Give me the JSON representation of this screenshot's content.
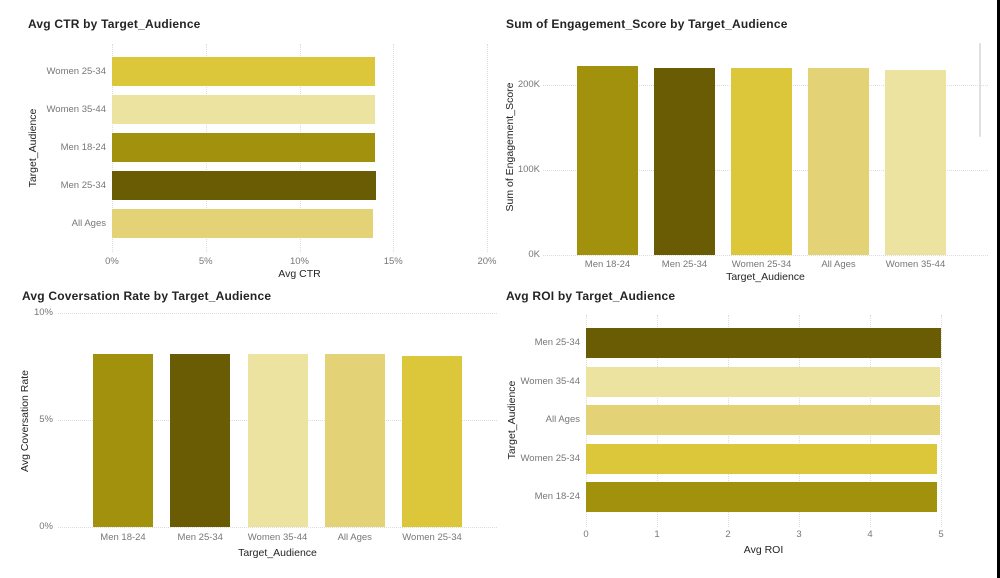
{
  "colors": {
    "canvas": "#ffffff",
    "title_text": "#252423",
    "axis_text": "#777777",
    "gridline": "#dcdcdc",
    "window_edge": "#000000",
    "scrollbar": "#e0e0e0"
  },
  "palette": {
    "Men 18-24": "#a2910c",
    "Men 25-34": "#6a5c05",
    "Women 25-34": "#dcc63a",
    "Women 35-44": "#ede3a1",
    "All Ages": "#e3d376"
  },
  "chart_data": [
    {
      "type": "bar",
      "orientation": "horizontal",
      "title": "Avg CTR by Target_Audience",
      "xlabel": "Avg CTR",
      "ylabel": "Target_Audience",
      "categories": [
        "Women 25-34",
        "Women 35-44",
        "Men 18-24",
        "Men 25-34",
        "All Ages"
      ],
      "values": [
        14,
        14,
        14,
        14.1,
        13.9
      ],
      "value_unit": "%",
      "xlim": [
        0,
        20
      ],
      "xticks": [
        0,
        5,
        10,
        15,
        20
      ],
      "xtick_labels": [
        "0%",
        "5%",
        "10%",
        "15%",
        "20%"
      ],
      "grid": "dotted-vertical",
      "legend": "none"
    },
    {
      "type": "bar",
      "orientation": "vertical",
      "title": "Sum of Engagement_Score by Target_Audience",
      "xlabel": "Target_Audience",
      "ylabel": "Sum of Engagement_Score",
      "categories": [
        "Men 18-24",
        "Men 25-34",
        "Women 25-34",
        "All Ages",
        "Women 35-44"
      ],
      "values": [
        222000,
        220000,
        220000,
        220000,
        218000
      ],
      "ylim": [
        0,
        235000
      ],
      "yticks": [
        0,
        100000,
        200000
      ],
      "ytick_labels": [
        "0K",
        "100K",
        "200K"
      ],
      "grid": "dotted-horizontal",
      "legend": "none"
    },
    {
      "type": "bar",
      "orientation": "vertical",
      "title": "Avg Coversation Rate by Target_Audience",
      "xlabel": "Target_Audience",
      "ylabel": "Avg Coversation Rate",
      "categories": [
        "Men 18-24",
        "Men 25-34",
        "Women 35-44",
        "All Ages",
        "Women 25-34"
      ],
      "values": [
        8.1,
        8.1,
        8.1,
        8.1,
        8
      ],
      "value_unit": "%",
      "ylim": [
        0,
        10
      ],
      "yticks": [
        0,
        5,
        10
      ],
      "ytick_labels": [
        "0%",
        "5%",
        "10%"
      ],
      "grid": "dotted-horizontal",
      "legend": "none"
    },
    {
      "type": "bar",
      "orientation": "horizontal",
      "title": "Avg ROI by Target_Audience",
      "xlabel": "Avg ROI",
      "ylabel": "Target_Audience",
      "categories": [
        "Men 25-34",
        "Women 35-44",
        "All Ages",
        "Women 25-34",
        "Men 18-24"
      ],
      "values": [
        5,
        4.98,
        4.98,
        4.95,
        4.95
      ],
      "xlim": [
        0,
        5
      ],
      "xticks": [
        0,
        1,
        2,
        3,
        4,
        5
      ],
      "xtick_labels": [
        "0",
        "1",
        "2",
        "3",
        "4",
        "5"
      ],
      "grid": "dotted-vertical",
      "legend": "none"
    }
  ]
}
